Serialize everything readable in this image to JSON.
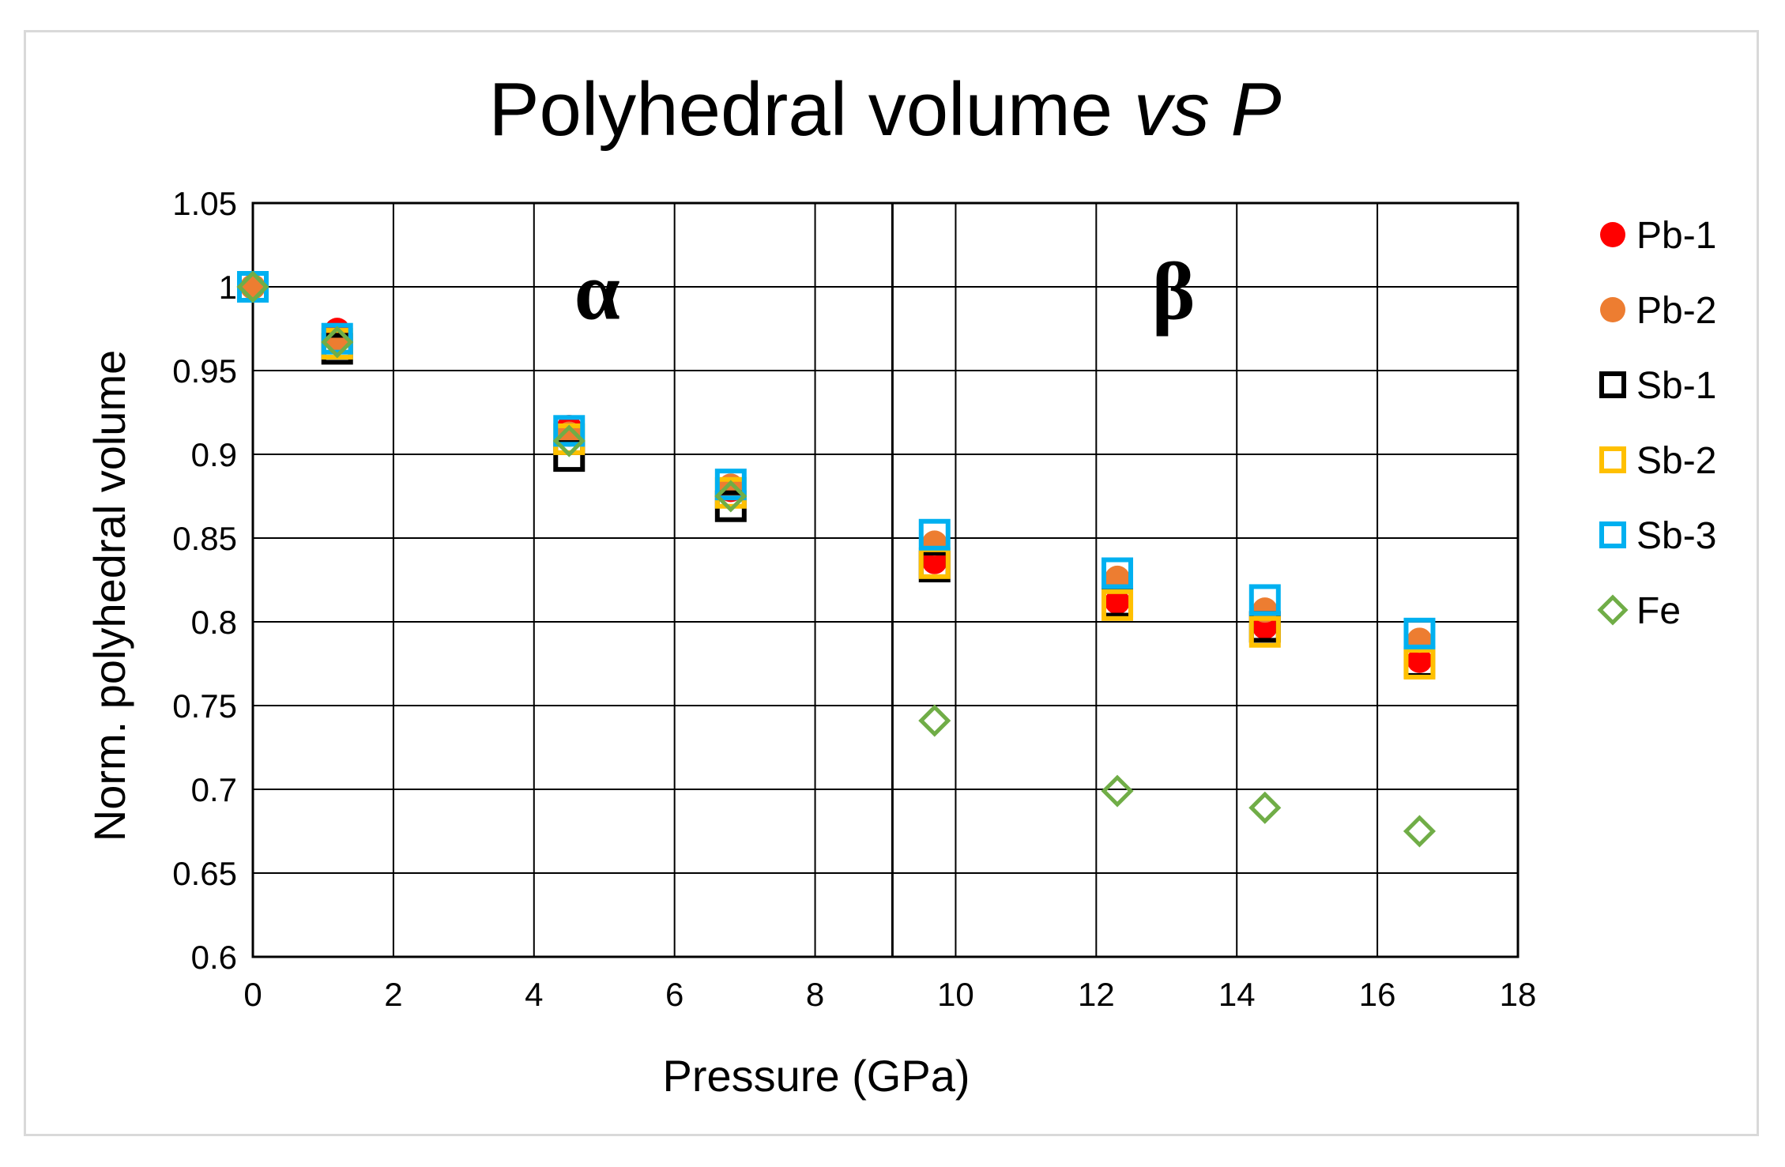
{
  "chart_data": {
    "type": "scatter",
    "title": "Polyhedral volume",
    "title_italic": "vs P",
    "xlabel": "Pressure (GPa)",
    "ylabel": "Norm. polyhedral volume",
    "xlim": [
      0,
      18
    ],
    "ylim": [
      0.6,
      1.05
    ],
    "xticks": [
      0,
      2,
      4,
      6,
      8,
      10,
      12,
      14,
      16,
      18
    ],
    "yticks": [
      0.6,
      0.65,
      0.7,
      0.75,
      0.8,
      0.85,
      0.9,
      0.95,
      1,
      1.05
    ],
    "xtick_labels": [
      "0",
      "2",
      "4",
      "6",
      "8",
      "10",
      "12",
      "14",
      "16",
      "18"
    ],
    "ytick_labels": [
      "0.6",
      "0.65",
      "0.7",
      "0.75",
      "0.8",
      "0.85",
      "0.9",
      "0.95",
      "1",
      "1.05"
    ],
    "grid": true,
    "legend_position": "right",
    "phase_boundary_x": 9.1,
    "annotations": [
      {
        "text": "α",
        "x": 4.9,
        "y": 0.995
      },
      {
        "text": "β",
        "x": 13.1,
        "y": 0.995
      }
    ],
    "series": [
      {
        "name": "Pb-1",
        "marker": "circle-filled",
        "color": "#ff0000",
        "x": [
          0,
          1.2,
          4.5,
          6.8,
          9.7,
          12.3,
          14.4,
          16.6
        ],
        "y": [
          1.0,
          0.974,
          0.916,
          0.879,
          0.836,
          0.812,
          0.797,
          0.777
        ]
      },
      {
        "name": "Pb-2",
        "marker": "circle-filled",
        "color": "#ed7d31",
        "x": [
          0,
          1.2,
          4.5,
          6.8,
          9.7,
          12.3,
          14.4,
          16.6
        ],
        "y": [
          1.0,
          0.968,
          0.912,
          0.881,
          0.847,
          0.826,
          0.807,
          0.789
        ]
      },
      {
        "name": "Sb-1",
        "marker": "square-open",
        "color": "#000000",
        "x": [
          0,
          1.2,
          4.5,
          6.8,
          9.7,
          12.3,
          14.4,
          16.6
        ],
        "y": [
          1.0,
          0.963,
          0.899,
          0.869,
          0.833,
          0.812,
          0.797,
          0.776
        ]
      },
      {
        "name": "Sb-2",
        "marker": "square-open",
        "color": "#ffc000",
        "x": [
          0,
          1.2,
          4.5,
          6.8,
          9.7,
          12.3,
          14.4,
          16.6
        ],
        "y": [
          1.0,
          0.966,
          0.909,
          0.877,
          0.835,
          0.81,
          0.794,
          0.775
        ]
      },
      {
        "name": "Sb-3",
        "marker": "square-open",
        "color": "#00b0f0",
        "x": [
          0,
          1.2,
          4.5,
          6.8,
          9.7,
          12.3,
          14.4,
          16.6
        ],
        "y": [
          1.0,
          0.969,
          0.914,
          0.882,
          0.852,
          0.829,
          0.813,
          0.793
        ]
      },
      {
        "name": "Fe",
        "marker": "diamond-open",
        "color": "#70ad47",
        "x": [
          0,
          1.2,
          4.5,
          6.8,
          9.7,
          12.3,
          14.4,
          16.6
        ],
        "y": [
          1.0,
          0.967,
          0.908,
          0.875,
          0.741,
          0.699,
          0.689,
          0.675
        ]
      }
    ]
  }
}
